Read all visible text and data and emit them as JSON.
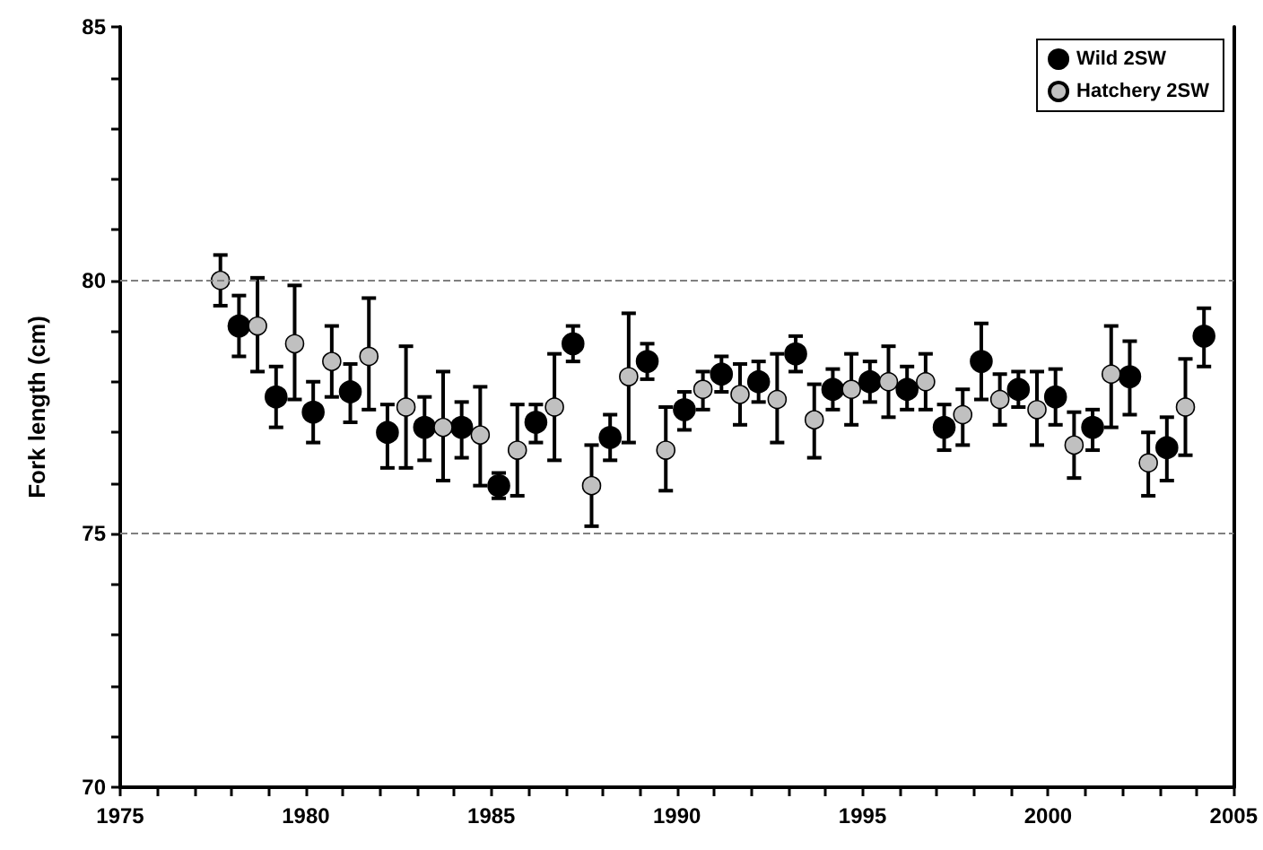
{
  "chart_data": {
    "type": "scatter",
    "ylabel": "Fork length (cm)",
    "xlim": [
      1975,
      2005
    ],
    "xticks": [
      1975,
      {
        "value": 1976,
        "label": null
      },
      {
        "value": 1977,
        "label": null
      },
      {
        "value": 1978,
        "label": null
      },
      {
        "value": 1979,
        "label": null
      },
      1980,
      {
        "value": 1981,
        "label": null
      },
      {
        "value": 1982,
        "label": null
      },
      {
        "value": 1983,
        "label": null
      },
      {
        "value": 1984,
        "label": null
      },
      1985,
      {
        "value": 1986,
        "label": null
      },
      {
        "value": 1987,
        "label": null
      },
      {
        "value": 1988,
        "label": null
      },
      {
        "value": 1989,
        "label": null
      },
      1990,
      {
        "value": 1991,
        "label": null
      },
      {
        "value": 1992,
        "label": null
      },
      {
        "value": 1993,
        "label": null
      },
      {
        "value": 1994,
        "label": null
      },
      1995,
      {
        "value": 1996,
        "label": null
      },
      {
        "value": 1997,
        "label": null
      },
      {
        "value": 1998,
        "label": null
      },
      {
        "value": 1999,
        "label": null
      },
      2000,
      {
        "value": 2001,
        "label": null
      },
      {
        "value": 2002,
        "label": null
      },
      {
        "value": 2003,
        "label": null
      },
      {
        "value": 2004,
        "label": null
      },
      2005
    ],
    "ylim": [
      70,
      85
    ],
    "yticks": [
      70,
      {
        "value": 71,
        "label": null
      },
      {
        "value": 72,
        "label": null
      },
      {
        "value": 73,
        "label": null
      },
      {
        "value": 74,
        "label": null
      },
      75,
      {
        "value": 76,
        "label": null
      },
      {
        "value": 77,
        "label": null
      },
      {
        "value": 78,
        "label": null
      },
      {
        "value": 79,
        "label": null
      },
      80,
      {
        "value": 81,
        "label": null
      },
      {
        "value": 82,
        "label": null
      },
      {
        "value": 83,
        "label": null
      },
      {
        "value": 84,
        "label": null
      },
      85
    ],
    "ref_lines": [
      {
        "axis": "y",
        "value": 80,
        "color": "#808080",
        "line_style": "dashed"
      },
      {
        "axis": "y",
        "value": 75,
        "color": "#808080",
        "line_style": "dashed"
      }
    ],
    "legend": "top right",
    "marker": "circle",
    "grid": false,
    "series": [
      {
        "name": "Wild 2SW",
        "color": "#000000",
        "x": [
          1978.2,
          1979.2,
          1980.2,
          1981.2,
          1982.2,
          1983.2,
          1984.2,
          1985.2,
          1986.2,
          1987.2,
          1988.2,
          1989.2,
          1990.2,
          1991.2,
          1992.2,
          1993.2,
          1994.2,
          1995.2,
          1996.2,
          1997.2,
          1998.2,
          1999.2,
          2000.2,
          2001.2,
          2002.2,
          2003.2,
          2004.2
        ],
        "values": [
          79.1,
          77.7,
          77.4,
          77.8,
          77.0,
          77.1,
          77.1,
          75.95,
          77.2,
          78.75,
          76.9,
          78.4,
          77.45,
          78.15,
          78.0,
          78.55,
          77.85,
          78.0,
          77.85,
          77.1,
          78.4,
          77.85,
          77.7,
          77.1,
          78.1,
          76.7,
          78.9
        ],
        "errors": [
          [
            78.5,
            79.7
          ],
          [
            77.1,
            78.3
          ],
          [
            76.8,
            78.0
          ],
          [
            77.2,
            78.35
          ],
          [
            76.3,
            77.55
          ],
          [
            76.45,
            77.7
          ],
          [
            76.5,
            77.6
          ],
          [
            75.7,
            76.2
          ],
          [
            76.8,
            77.55
          ],
          [
            78.4,
            79.1
          ],
          [
            76.45,
            77.35
          ],
          [
            78.05,
            78.75
          ],
          [
            77.05,
            77.8
          ],
          [
            77.8,
            78.5
          ],
          [
            77.6,
            78.4
          ],
          [
            78.2,
            78.9
          ],
          [
            77.45,
            78.25
          ],
          [
            77.6,
            78.4
          ],
          [
            77.45,
            78.3
          ],
          [
            76.65,
            77.55
          ],
          [
            77.65,
            79.15
          ],
          [
            77.5,
            78.2
          ],
          [
            77.15,
            78.25
          ],
          [
            76.65,
            77.45
          ],
          [
            77.35,
            78.8
          ],
          [
            76.05,
            77.3
          ],
          [
            78.3,
            79.45
          ]
        ]
      },
      {
        "name": "Hatchery 2SW",
        "color": "#c0c0c0",
        "x": [
          1977.7,
          1978.7,
          1979.7,
          1980.7,
          1981.7,
          1982.7,
          1983.7,
          1984.7,
          1985.7,
          1986.7,
          1987.7,
          1988.7,
          1989.7,
          1990.7,
          1991.7,
          1992.7,
          1993.7,
          1994.7,
          1995.7,
          1996.7,
          1997.7,
          1998.7,
          1999.7,
          2000.7,
          2001.7,
          2002.7,
          2003.7
        ],
        "values": [
          80.0,
          79.1,
          78.75,
          78.4,
          78.5,
          77.5,
          77.1,
          76.95,
          76.65,
          77.5,
          75.95,
          78.1,
          76.65,
          77.85,
          77.75,
          77.65,
          77.25,
          77.85,
          78.0,
          78.0,
          77.35,
          77.65,
          77.45,
          76.75,
          78.15,
          76.4,
          77.5
        ],
        "errors": [
          [
            79.5,
            80.5
          ],
          [
            78.2,
            80.05
          ],
          [
            77.65,
            79.9
          ],
          [
            77.7,
            79.1
          ],
          [
            77.45,
            79.65
          ],
          [
            76.3,
            78.7
          ],
          [
            76.05,
            78.2
          ],
          [
            75.95,
            77.9
          ],
          [
            75.75,
            77.55
          ],
          [
            76.45,
            78.55
          ],
          [
            75.15,
            76.75
          ],
          [
            76.8,
            79.35
          ],
          [
            75.85,
            77.5
          ],
          [
            77.45,
            78.2
          ],
          [
            77.15,
            78.35
          ],
          [
            76.8,
            78.55
          ],
          [
            76.5,
            77.95
          ],
          [
            77.15,
            78.55
          ],
          [
            77.3,
            78.7
          ],
          [
            77.45,
            78.55
          ],
          [
            76.75,
            77.85
          ],
          [
            77.15,
            78.15
          ],
          [
            76.75,
            78.2
          ],
          [
            76.1,
            77.4
          ],
          [
            77.1,
            79.1
          ],
          [
            75.75,
            77.0
          ],
          [
            76.55,
            78.45
          ]
        ]
      }
    ]
  }
}
